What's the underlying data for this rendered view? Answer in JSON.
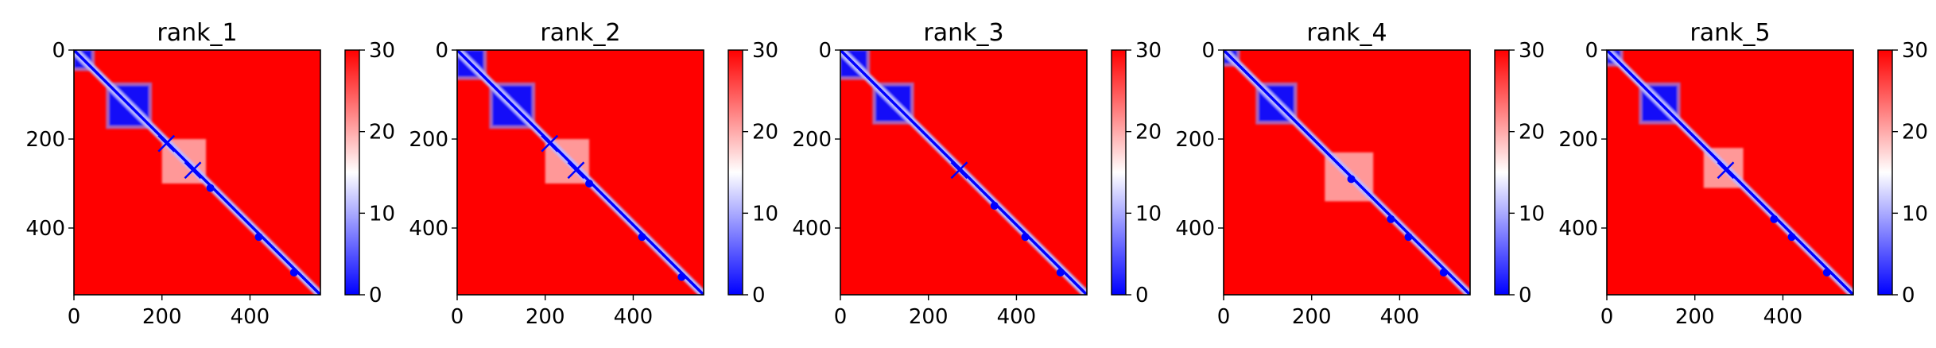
{
  "colors": {
    "low": "#0000ff",
    "mid": "#ffffff",
    "high": "#ff0000"
  },
  "chart_data": [
    {
      "type": "heatmap",
      "title": "rank_1",
      "x_ticks": [
        "0",
        "200",
        "400"
      ],
      "y_ticks": [
        "0",
        "200",
        "400"
      ],
      "colorbar_ticks": [
        "0",
        "10",
        "20",
        "30"
      ],
      "xlim": [
        0,
        560
      ],
      "ylim": [
        550,
        0
      ],
      "color_range": [
        0,
        30
      ],
      "colormap": "bwr",
      "domains": [
        [
          0,
          40
        ],
        [
          80,
          170
        ]
      ],
      "interfaces": [
        [
          200,
          300
        ]
      ],
      "crosses": [
        210,
        270
      ],
      "diagonal_dots": [
        310,
        420,
        500
      ]
    },
    {
      "type": "heatmap",
      "title": "rank_2",
      "x_ticks": [
        "0",
        "200",
        "400"
      ],
      "y_ticks": [
        "0",
        "200",
        "400"
      ],
      "colorbar_ticks": [
        "0",
        "10",
        "20",
        "30"
      ],
      "xlim": [
        0,
        560
      ],
      "ylim": [
        550,
        0
      ],
      "color_range": [
        0,
        30
      ],
      "colormap": "bwr",
      "domains": [
        [
          0,
          60
        ],
        [
          80,
          170
        ]
      ],
      "interfaces": [
        [
          200,
          300
        ]
      ],
      "crosses": [
        210,
        270
      ],
      "diagonal_dots": [
        300,
        420,
        510
      ]
    },
    {
      "type": "heatmap",
      "title": "rank_3",
      "x_ticks": [
        "0",
        "200",
        "400"
      ],
      "y_ticks": [
        "0",
        "200",
        "400"
      ],
      "colorbar_ticks": [
        "0",
        "10",
        "20",
        "30"
      ],
      "xlim": [
        0,
        560
      ],
      "ylim": [
        550,
        0
      ],
      "color_range": [
        0,
        30
      ],
      "colormap": "bwr",
      "domains": [
        [
          0,
          60
        ],
        [
          80,
          160
        ]
      ],
      "interfaces": [],
      "crosses": [
        270
      ],
      "diagonal_dots": [
        350,
        420,
        500
      ]
    },
    {
      "type": "heatmap",
      "title": "rank_4",
      "x_ticks": [
        "0",
        "200",
        "400"
      ],
      "y_ticks": [
        "0",
        "200",
        "400"
      ],
      "colorbar_ticks": [
        "0",
        "10",
        "20",
        "30"
      ],
      "xlim": [
        0,
        560
      ],
      "ylim": [
        550,
        0
      ],
      "color_range": [
        0,
        30
      ],
      "colormap": "bwr",
      "domains": [
        [
          0,
          30
        ],
        [
          80,
          160
        ]
      ],
      "interfaces": [
        [
          230,
          340
        ]
      ],
      "crosses": [],
      "diagonal_dots": [
        290,
        380,
        420,
        500
      ]
    },
    {
      "type": "heatmap",
      "title": "rank_5",
      "x_ticks": [
        "0",
        "200",
        "400"
      ],
      "y_ticks": [
        "0",
        "200",
        "400"
      ],
      "colorbar_ticks": [
        "0",
        "10",
        "20",
        "30"
      ],
      "xlim": [
        0,
        560
      ],
      "ylim": [
        550,
        0
      ],
      "color_range": [
        0,
        30
      ],
      "colormap": "bwr",
      "domains": [
        [
          0,
          30
        ],
        [
          80,
          160
        ]
      ],
      "interfaces": [
        [
          220,
          310
        ]
      ],
      "crosses": [
        270
      ],
      "diagonal_dots": [
        380,
        420,
        500
      ]
    }
  ]
}
